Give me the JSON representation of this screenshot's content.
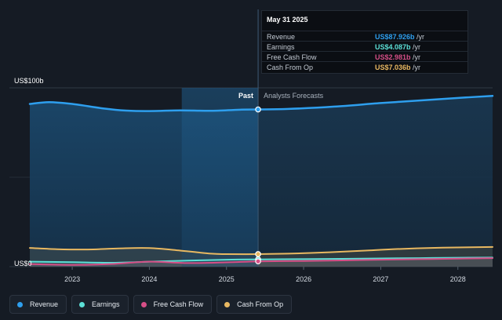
{
  "chart_data": {
    "type": "area",
    "y_unit_label": "US$100b",
    "y_zero_label": "US$0",
    "ylim": [
      0,
      100
    ],
    "x_ticks": [
      "2023",
      "2024",
      "2025",
      "2026",
      "2027",
      "2028"
    ],
    "past_label": "Past",
    "forecast_label": "Analysts Forecasts",
    "series": [
      {
        "name": "Revenue",
        "color": "#2e9fee",
        "x": [
          2022.45,
          2022.7,
          2023.0,
          2023.4,
          2023.7,
          2024.0,
          2024.4,
          2024.8,
          2025.2,
          2025.41,
          2025.8,
          2026.4,
          2027.0,
          2027.6,
          2028.1,
          2028.45
        ],
        "y": [
          91,
          92,
          91,
          88.5,
          87.3,
          87.0,
          87.4,
          87.2,
          87.8,
          87.926,
          88.2,
          89.5,
          91.5,
          93.2,
          94.6,
          95.5
        ]
      },
      {
        "name": "Earnings",
        "color": "#5ce0d7",
        "x": [
          2022.45,
          2023.0,
          2023.5,
          2024.0,
          2024.5,
          2025.0,
          2025.41,
          2026.0,
          2026.5,
          2027.0,
          2027.5,
          2028.0,
          2028.45
        ],
        "y": [
          2.8,
          2.5,
          2.2,
          2.8,
          3.4,
          3.9,
          4.087,
          4.2,
          4.4,
          4.6,
          4.8,
          5.0,
          5.1
        ]
      },
      {
        "name": "Free Cash Flow",
        "color": "#d64f87",
        "x": [
          2022.45,
          2023.0,
          2023.5,
          2024.0,
          2024.5,
          2025.0,
          2025.41,
          2026.0,
          2026.5,
          2027.0,
          2027.5,
          2028.0,
          2028.45
        ],
        "y": [
          1.5,
          1.0,
          1.5,
          2.8,
          2.0,
          2.4,
          2.981,
          3.2,
          3.5,
          3.9,
          4.2,
          4.5,
          4.8
        ]
      },
      {
        "name": "Cash From Op",
        "color": "#e8b861",
        "x": [
          2022.45,
          2022.8,
          2023.2,
          2023.6,
          2024.0,
          2024.4,
          2024.8,
          2025.0,
          2025.41,
          2025.8,
          2026.3,
          2026.8,
          2027.3,
          2027.8,
          2028.45
        ],
        "y": [
          10.5,
          9.8,
          9.6,
          10.2,
          10.4,
          9.0,
          7.3,
          7.0,
          7.036,
          7.3,
          8.0,
          9.0,
          10.0,
          10.6,
          11.0
        ]
      }
    ],
    "divider_x": 2025.41,
    "highlight_band": [
      2024.42,
      2025.41
    ]
  },
  "tooltip": {
    "date": "May 31 2025",
    "rows": [
      {
        "label": "Revenue",
        "value": "US$87.926b",
        "unit": " /yr",
        "color": "#2e9fee"
      },
      {
        "label": "Earnings",
        "value": "US$4.087b",
        "unit": " /yr",
        "color": "#5ce0d7"
      },
      {
        "label": "Free Cash Flow",
        "value": "US$2.981b",
        "unit": " /yr",
        "color": "#d64f87"
      },
      {
        "label": "Cash From Op",
        "value": "US$7.036b",
        "unit": " /yr",
        "color": "#e8b861"
      }
    ]
  },
  "legend": [
    {
      "label": "Revenue",
      "color": "#2e9fee"
    },
    {
      "label": "Earnings",
      "color": "#5ce0d7"
    },
    {
      "label": "Free Cash Flow",
      "color": "#d64f87"
    },
    {
      "label": "Cash From Op",
      "color": "#e8b861"
    }
  ]
}
